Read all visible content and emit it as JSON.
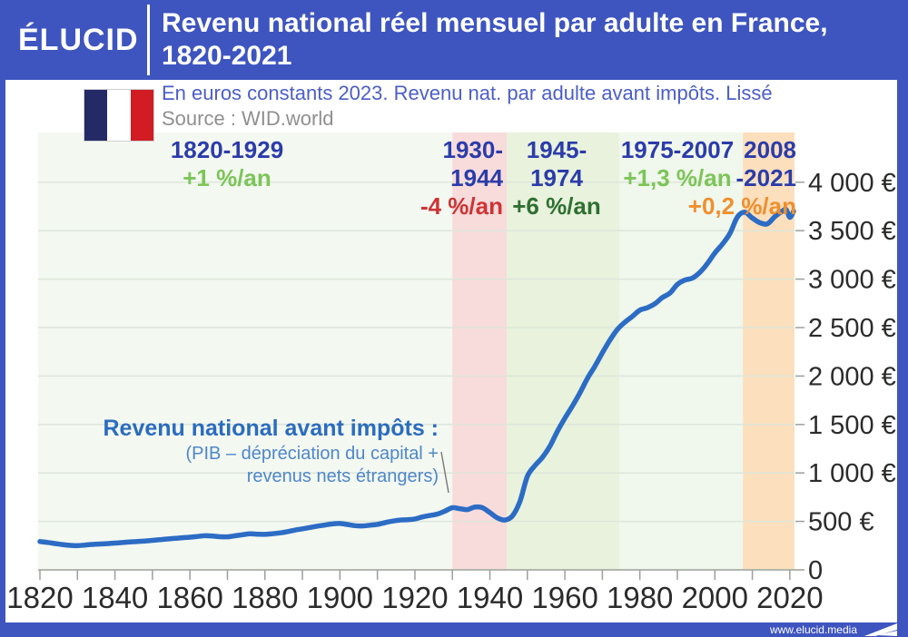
{
  "header": {
    "logo": "ÉLUCID",
    "title_line1": "Revenu national réel mensuel par adulte en France,",
    "title_line2": "1820-2021"
  },
  "subtitle": {
    "note": "En euros constants 2023. Revenu nat. par adulte avant impôts. Lissé",
    "source": "Source : WID.world",
    "flag": "france-flag"
  },
  "periods": [
    {
      "years1": "1820-1929",
      "rate": "+1 %/an",
      "rate_color": "#7cc558"
    },
    {
      "years1": "1930-",
      "years2": "1944",
      "rate": "-4 %/an",
      "rate_color": "#ce3434"
    },
    {
      "years1": "1945-1974",
      "rate": "+6 %/an",
      "rate_color": "#2f7030"
    },
    {
      "years1": "1975-2007",
      "rate": "+1,3 %/an",
      "rate_color": "#7cc558"
    },
    {
      "years1": "2008",
      "years2": "-2021",
      "rate": "+0,2 %/an",
      "rate_color": "#ef8f2e"
    }
  ],
  "series_annotation": {
    "title": "Revenu national avant impôts :",
    "detail1": "(PIB – dépréciation du capital +",
    "detail2": "revenus nets étrangers)"
  },
  "footer": {
    "url": "www.elucid.media"
  },
  "colors": {
    "frame_blue": "#3e55c0",
    "curve_blue": "#2c6cc4",
    "navy_label": "#2b3caa",
    "plot_background": "#f3f8f1",
    "band_pink": "#f8dbdb",
    "band_green": "#e8f2dd",
    "band_green_pale": "#f0f7ec",
    "band_orange": "#fcdfbc"
  },
  "chart_data": {
    "type": "line",
    "title": "Revenu national réel mensuel par adulte en France, 1820-2021",
    "subtitle": "En euros constants 2023. Revenu nat. par adulte avant impôts. Lissé",
    "source": "Source : WID.world",
    "x_range": [
      1820,
      2021
    ],
    "y_range": [
      0,
      4000
    ],
    "grid": true,
    "y_tick_values": [
      0,
      500,
      1000,
      1500,
      2000,
      2500,
      3000,
      3500,
      4000
    ],
    "y_tick_labels": [
      "0",
      "500 €",
      "1 000 €",
      "1 500 €",
      "2 000 €",
      "2 500 €",
      "3 000 €",
      "3 500 €",
      "4 000 €"
    ],
    "x_tick_label_values": [
      1820,
      1840,
      1860,
      1880,
      1900,
      1920,
      1940,
      1960,
      1980,
      2000,
      2020
    ],
    "x_minor_tick_step": 10,
    "bands": [
      {
        "label": "1820-1929",
        "rate": "+1 %/an",
        "from": 1820,
        "to": 1930,
        "color": "#f3f8f1"
      },
      {
        "label": "1930-1944",
        "rate": "-4 %/an",
        "from": 1930,
        "to": 1944.5,
        "color": "#f8dbdb"
      },
      {
        "label": "1945-1974",
        "rate": "+6 %/an",
        "from": 1944.5,
        "to": 1974.5,
        "color": "#e8f2dd"
      },
      {
        "label": "1975-2007",
        "rate": "+1,3 %/an",
        "from": 1974.5,
        "to": 2007.5,
        "color": "#f0f7ec"
      },
      {
        "label": "2008-2021",
        "rate": "+0,2 %/an",
        "from": 2007.5,
        "to": 2021,
        "color": "#fcdfbc"
      }
    ],
    "series": [
      {
        "name": "Revenu national avant impôts (PIB – dépréciation du capital + revenus nets étrangers)",
        "color": "#2c6cc4",
        "unit": "euros constants 2023 par mois",
        "points": [
          [
            1820,
            292
          ],
          [
            1822,
            283
          ],
          [
            1824,
            272
          ],
          [
            1826,
            261
          ],
          [
            1828,
            253
          ],
          [
            1830,
            250
          ],
          [
            1832,
            256
          ],
          [
            1834,
            262
          ],
          [
            1836,
            267
          ],
          [
            1838,
            271
          ],
          [
            1840,
            276
          ],
          [
            1842,
            282
          ],
          [
            1844,
            288
          ],
          [
            1846,
            293
          ],
          [
            1848,
            298
          ],
          [
            1850,
            304
          ],
          [
            1852,
            311
          ],
          [
            1854,
            318
          ],
          [
            1856,
            325
          ],
          [
            1858,
            331
          ],
          [
            1860,
            337
          ],
          [
            1862,
            345
          ],
          [
            1864,
            352
          ],
          [
            1866,
            349
          ],
          [
            1868,
            342
          ],
          [
            1870,
            341
          ],
          [
            1872,
            351
          ],
          [
            1874,
            362
          ],
          [
            1876,
            372
          ],
          [
            1878,
            368
          ],
          [
            1880,
            366
          ],
          [
            1882,
            373
          ],
          [
            1884,
            381
          ],
          [
            1886,
            394
          ],
          [
            1888,
            410
          ],
          [
            1890,
            423
          ],
          [
            1892,
            437
          ],
          [
            1894,
            451
          ],
          [
            1896,
            463
          ],
          [
            1898,
            474
          ],
          [
            1900,
            478
          ],
          [
            1902,
            468
          ],
          [
            1904,
            456
          ],
          [
            1906,
            453
          ],
          [
            1908,
            461
          ],
          [
            1910,
            469
          ],
          [
            1912,
            487
          ],
          [
            1914,
            503
          ],
          [
            1916,
            513
          ],
          [
            1918,
            518
          ],
          [
            1920,
            525
          ],
          [
            1922,
            546
          ],
          [
            1924,
            561
          ],
          [
            1926,
            576
          ],
          [
            1928,
            606
          ],
          [
            1930,
            641
          ],
          [
            1932,
            631
          ],
          [
            1934,
            622
          ],
          [
            1936,
            648
          ],
          [
            1938,
            641
          ],
          [
            1940,
            591
          ],
          [
            1942,
            536
          ],
          [
            1944,
            514
          ],
          [
            1946,
            556
          ],
          [
            1948,
            705
          ],
          [
            1950,
            965
          ],
          [
            1952,
            1075
          ],
          [
            1954,
            1160
          ],
          [
            1956,
            1275
          ],
          [
            1958,
            1430
          ],
          [
            1960,
            1565
          ],
          [
            1962,
            1690
          ],
          [
            1964,
            1825
          ],
          [
            1966,
            1975
          ],
          [
            1968,
            2100
          ],
          [
            1970,
            2240
          ],
          [
            1972,
            2370
          ],
          [
            1974,
            2480
          ],
          [
            1976,
            2555
          ],
          [
            1978,
            2615
          ],
          [
            1980,
            2680
          ],
          [
            1982,
            2705
          ],
          [
            1984,
            2745
          ],
          [
            1986,
            2810
          ],
          [
            1988,
            2855
          ],
          [
            1990,
            2945
          ],
          [
            1992,
            2990
          ],
          [
            1994,
            3010
          ],
          [
            1996,
            3070
          ],
          [
            1998,
            3160
          ],
          [
            2000,
            3270
          ],
          [
            2002,
            3360
          ],
          [
            2004,
            3470
          ],
          [
            2006,
            3640
          ],
          [
            2008,
            3690
          ],
          [
            2010,
            3630
          ],
          [
            2012,
            3582
          ],
          [
            2014,
            3570
          ],
          [
            2016,
            3645
          ],
          [
            2018,
            3702
          ],
          [
            2019,
            3718
          ],
          [
            2020,
            3638
          ],
          [
            2021,
            3700
          ]
        ]
      }
    ],
    "annotations": [
      {
        "text": "Revenu national avant impôts : (PIB – dépréciation du capital + revenus nets étrangers)",
        "points_to_year": 1932
      }
    ],
    "legend_position": "none"
  }
}
